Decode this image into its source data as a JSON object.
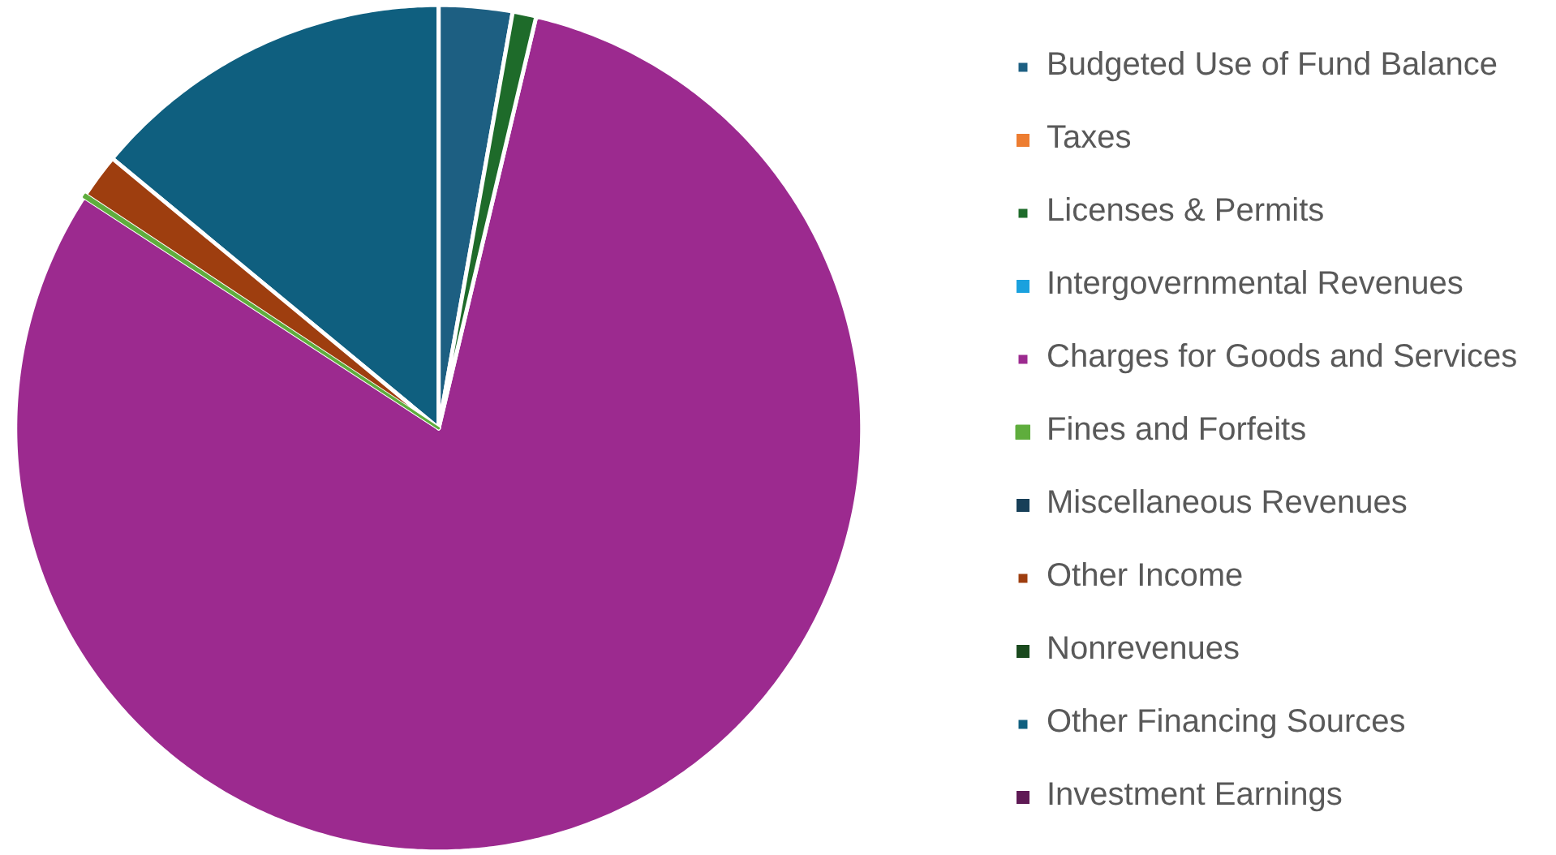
{
  "chart_data": {
    "type": "pie",
    "categories": [
      "Budgeted Use of Fund Balance",
      "Taxes",
      "Licenses & Permits",
      "Intergovernmental Revenues",
      "Charges for Goods and Services",
      "Fines and Forfeits",
      "Miscellaneous Revenues",
      "Other Income",
      "Nonrevenues",
      "Other Financing Sources",
      "Investment Earnings"
    ],
    "values": [
      2.8,
      0,
      0.9,
      0,
      80.5,
      0.1,
      0,
      1.7,
      0,
      14.0,
      0
    ],
    "colors": [
      "#1d5f82",
      "#ed7d31",
      "#1e6b2a",
      "#1aa1de",
      "#9c2a8f",
      "#5fad3d",
      "#173f58",
      "#9e3e0f",
      "#1a4a1e",
      "#0f5f7f",
      "#5f1a55"
    ],
    "legend": "right"
  }
}
